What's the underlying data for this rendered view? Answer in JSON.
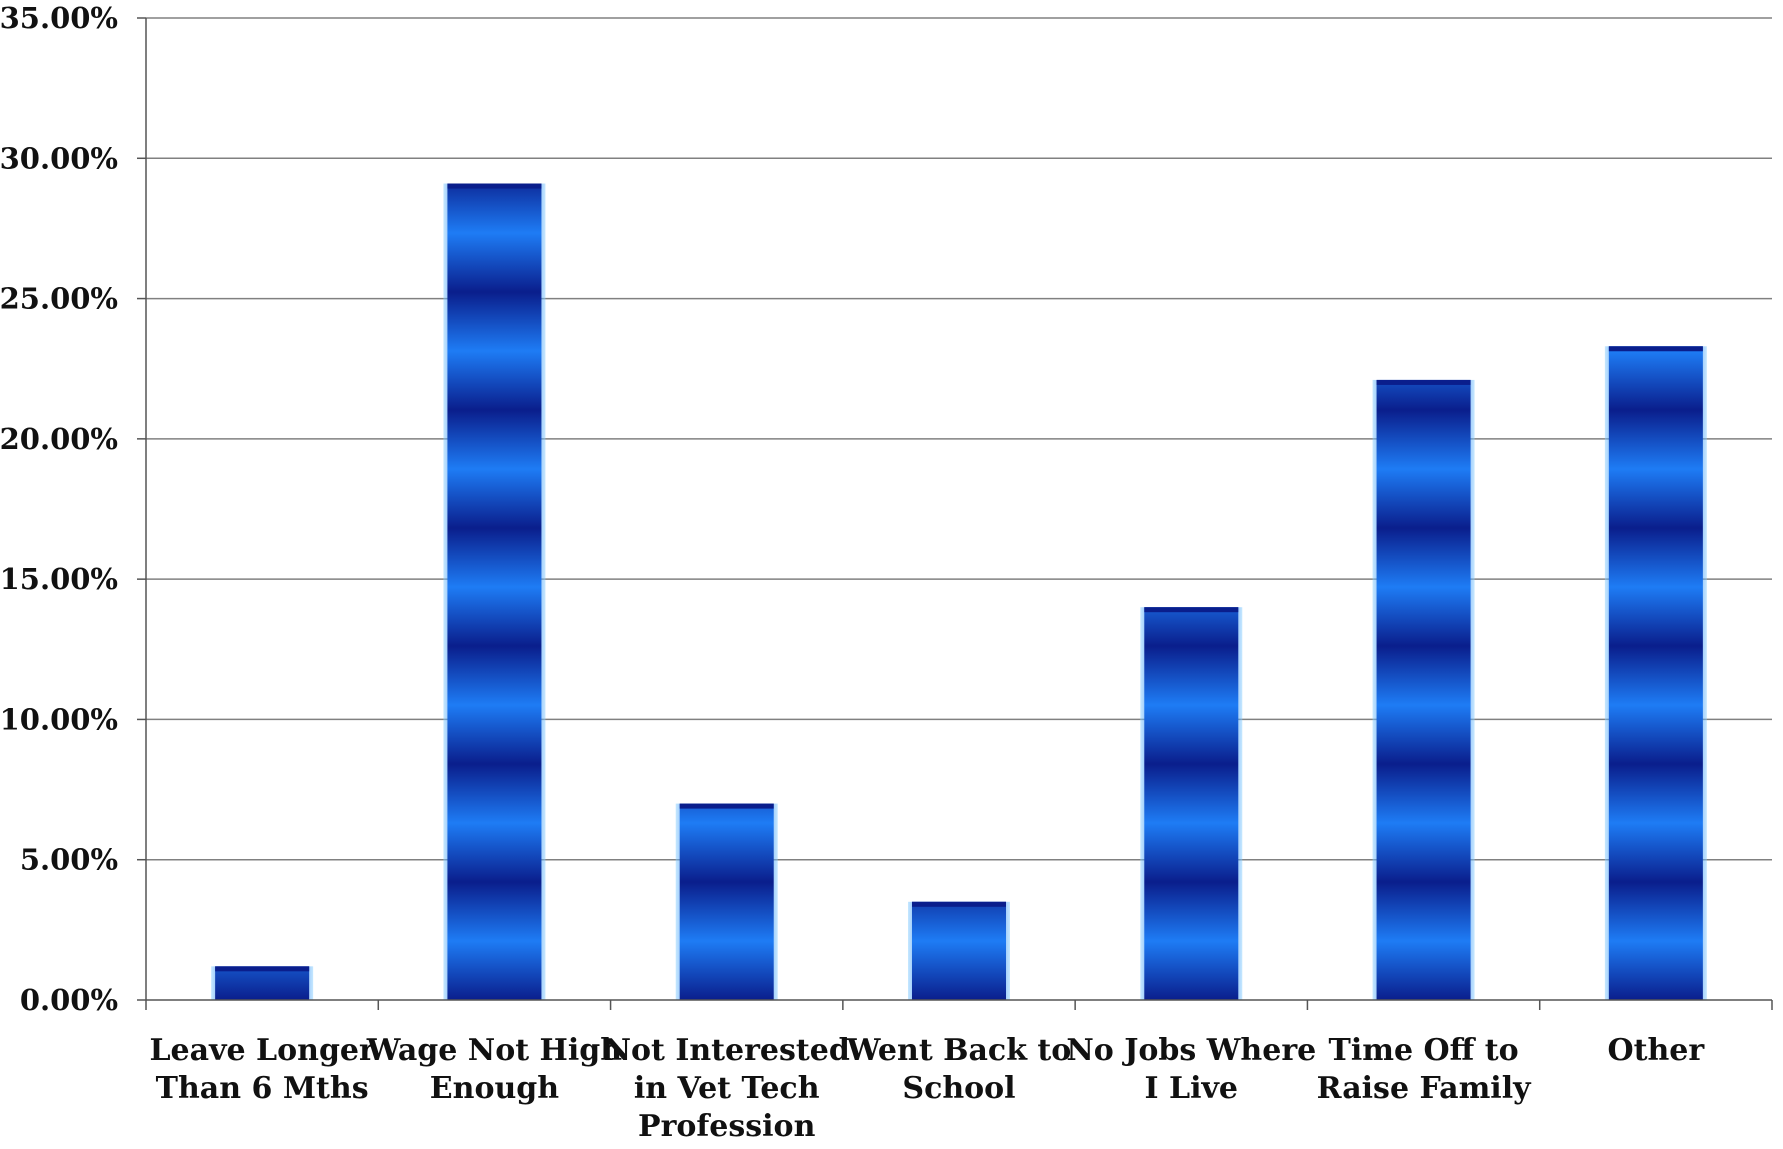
{
  "chart_data": {
    "type": "bar",
    "title": "",
    "xlabel": "",
    "ylabel": "",
    "categories": [
      [
        "Leave Longer",
        "Than 6 Mths"
      ],
      [
        "Wage Not High",
        "Enough"
      ],
      [
        "Not Interested",
        "in Vet Tech",
        "Profession"
      ],
      [
        "Went Back to",
        "School"
      ],
      [
        "No Jobs Where",
        "I Live"
      ],
      [
        "Time Off to",
        "Raise Family"
      ],
      [
        "Other"
      ]
    ],
    "values": [
      1.2,
      29.1,
      7.0,
      3.5,
      14.0,
      22.1,
      23.3
    ],
    "ylim": [
      0,
      35
    ],
    "yticks": [
      0,
      5,
      10,
      15,
      20,
      25,
      30,
      35
    ],
    "ytick_labels": [
      "0.00%",
      "5.00%",
      "10.00%",
      "15.00%",
      "20.00%",
      "25.00%",
      "30.00%",
      "35.00%"
    ],
    "grid": true,
    "legend": "none",
    "colors": {
      "bar_light": "#1e7cf5",
      "bar_dark": "#0a1e8c",
      "bar_edge": "#8ad0ff",
      "grid": "#808080",
      "axis": "#555555"
    }
  }
}
